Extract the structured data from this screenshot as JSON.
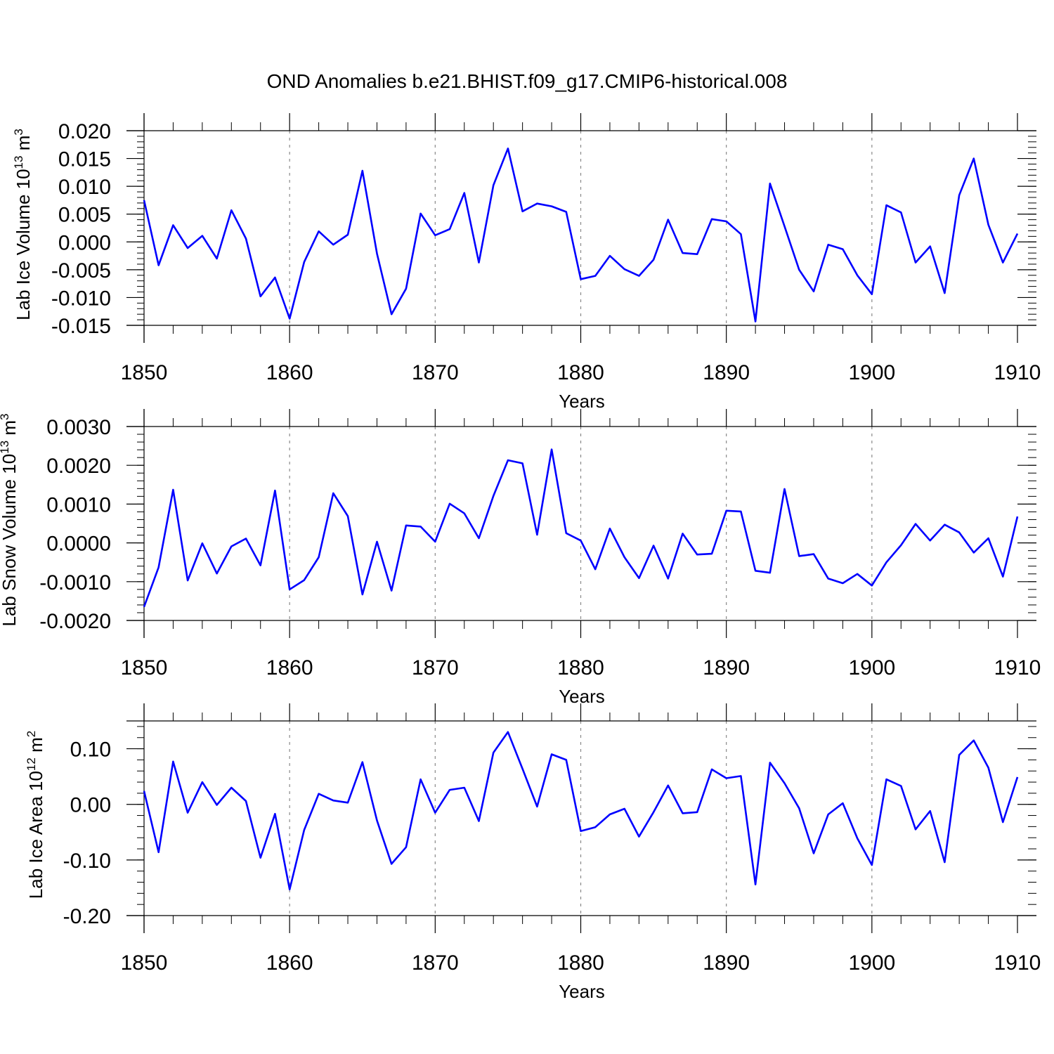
{
  "title": "OND Anomalies b.e21.BHIST.f09_g17.CMIP6-historical.008",
  "chart_data": [
    {
      "type": "line",
      "name": "ice-volume",
      "ylabel": "Lab Ice Volume",
      "ylabel_exp": "13",
      "ylabel_unit_sup": "3",
      "xlabel": "Years",
      "xlim": [
        1850,
        1910
      ],
      "ylim": [
        -0.015,
        0.02
      ],
      "frame_top": 0.02,
      "xticks": [
        1850,
        1860,
        1870,
        1880,
        1890,
        1900,
        1910
      ],
      "xtick_labels": [
        "1850",
        "1860",
        "1870",
        "1880",
        "1890",
        "1900",
        "1910"
      ],
      "yticks": [
        -0.015,
        -0.01,
        -0.005,
        0.0,
        0.005,
        0.01,
        0.015,
        0.02
      ],
      "ytick_labels": [
        "-0.015",
        "-0.010",
        "-0.005",
        "0.000",
        "0.005",
        "0.010",
        "0.015",
        "0.020"
      ],
      "yminor_step": 0.001,
      "x": [
        1850,
        1851,
        1852,
        1853,
        1854,
        1855,
        1856,
        1857,
        1858,
        1859,
        1860,
        1861,
        1862,
        1863,
        1864,
        1865,
        1866,
        1867,
        1868,
        1869,
        1870,
        1871,
        1872,
        1873,
        1874,
        1875,
        1876,
        1877,
        1878,
        1879,
        1880,
        1881,
        1882,
        1883,
        1884,
        1885,
        1886,
        1887,
        1888,
        1889,
        1890,
        1891,
        1892,
        1893,
        1894,
        1895,
        1896,
        1897,
        1898,
        1899,
        1900,
        1901,
        1902,
        1903,
        1904,
        1905,
        1906,
        1907,
        1908,
        1909,
        1910
      ],
      "values": [
        0.0075,
        -0.0042,
        0.003,
        -0.0011,
        0.0011,
        -0.003,
        0.0057,
        0.0006,
        -0.0098,
        -0.0064,
        -0.0138,
        -0.0036,
        0.0019,
        -0.0005,
        0.0013,
        0.0128,
        -0.0021,
        -0.013,
        -0.0084,
        0.0051,
        0.0012,
        0.0023,
        0.0088,
        -0.0037,
        0.0102,
        0.0168,
        0.0055,
        0.0069,
        0.0064,
        0.0054,
        -0.0067,
        -0.0061,
        -0.0025,
        -0.0049,
        -0.0061,
        -0.0032,
        0.004,
        -0.002,
        -0.0022,
        0.0041,
        0.0037,
        0.0014,
        -0.0143,
        0.0105,
        0.0028,
        -0.005,
        -0.0089,
        -0.0005,
        -0.0013,
        -0.006,
        -0.0094,
        0.0066,
        0.0053,
        -0.0037,
        -0.0008,
        -0.0092,
        0.0084,
        0.015,
        0.0031,
        -0.0037,
        0.0015
      ]
    },
    {
      "type": "line",
      "name": "snow-volume",
      "ylabel": "Lab Snow Volume",
      "ylabel_exp": "13",
      "ylabel_unit_sup": "3",
      "xlabel": "Years",
      "xlim": [
        1850,
        1910
      ],
      "ylim": [
        -0.002,
        0.003
      ],
      "frame_top": 0.003,
      "xticks": [
        1850,
        1860,
        1870,
        1880,
        1890,
        1900,
        1910
      ],
      "xtick_labels": [
        "1850",
        "1860",
        "1870",
        "1880",
        "1890",
        "1900",
        "1910"
      ],
      "yticks": [
        -0.002,
        -0.001,
        0.0,
        0.001,
        0.002,
        0.003
      ],
      "ytick_labels": [
        "-0.0020",
        "-0.0010",
        "0.0000",
        "0.0010",
        "0.0020",
        "0.0030"
      ],
      "yminor_step": 0.0002,
      "x": [
        1850,
        1851,
        1852,
        1853,
        1854,
        1855,
        1856,
        1857,
        1858,
        1859,
        1860,
        1861,
        1862,
        1863,
        1864,
        1865,
        1866,
        1867,
        1868,
        1869,
        1870,
        1871,
        1872,
        1873,
        1874,
        1875,
        1876,
        1877,
        1878,
        1879,
        1880,
        1881,
        1882,
        1883,
        1884,
        1885,
        1886,
        1887,
        1888,
        1889,
        1890,
        1891,
        1892,
        1893,
        1894,
        1895,
        1896,
        1897,
        1898,
        1899,
        1900,
        1901,
        1902,
        1903,
        1904,
        1905,
        1906,
        1907,
        1908,
        1909,
        1910
      ],
      "values": [
        -0.00165,
        -0.00063,
        0.00137,
        -0.00097,
        -1e-05,
        -0.00079,
        -9e-05,
        0.00011,
        -0.00058,
        0.00135,
        -0.0012,
        -0.00096,
        -0.00037,
        0.00128,
        0.00069,
        -0.00133,
        3e-05,
        -0.00123,
        0.00045,
        0.00042,
        3e-05,
        0.00101,
        0.00076,
        0.00012,
        0.00121,
        0.00213,
        0.00205,
        0.00021,
        0.00241,
        0.00025,
        6e-05,
        -0.00068,
        0.00037,
        -0.00037,
        -0.00091,
        -7e-05,
        -0.00092,
        0.00024,
        -0.0003,
        -0.00028,
        0.00083,
        0.00081,
        -0.00072,
        -0.00077,
        0.00139,
        -0.00034,
        -0.00029,
        -0.00092,
        -0.00104,
        -0.0008,
        -0.0011,
        -0.0005,
        -6e-05,
        0.00049,
        6e-05,
        0.00047,
        0.00027,
        -0.00025,
        0.00012,
        -0.00087,
        0.00068
      ]
    },
    {
      "type": "line",
      "name": "ice-area",
      "ylabel": "Lab Ice Area",
      "ylabel_exp": "12",
      "ylabel_unit_sup": "2",
      "xlabel": "Years",
      "xlim": [
        1850,
        1910
      ],
      "ylim": [
        -0.2,
        0.15
      ],
      "frame_top": 0.15,
      "xticks": [
        1850,
        1860,
        1870,
        1880,
        1890,
        1900,
        1910
      ],
      "xtick_labels": [
        "1850",
        "1860",
        "1870",
        "1880",
        "1890",
        "1900",
        "1910"
      ],
      "yticks": [
        -0.2,
        -0.1,
        0.0,
        0.1
      ],
      "ytick_labels": [
        "-0.20",
        "-0.10",
        "0.00",
        "0.10"
      ],
      "yminor_step": 0.02,
      "x": [
        1850,
        1851,
        1852,
        1853,
        1854,
        1855,
        1856,
        1857,
        1858,
        1859,
        1860,
        1861,
        1862,
        1863,
        1864,
        1865,
        1866,
        1867,
        1868,
        1869,
        1870,
        1871,
        1872,
        1873,
        1874,
        1875,
        1876,
        1877,
        1878,
        1879,
        1880,
        1881,
        1882,
        1883,
        1884,
        1885,
        1886,
        1887,
        1888,
        1889,
        1890,
        1891,
        1892,
        1893,
        1894,
        1895,
        1896,
        1897,
        1898,
        1899,
        1900,
        1901,
        1902,
        1903,
        1904,
        1905,
        1906,
        1907,
        1908,
        1909,
        1910
      ],
      "values": [
        0.024,
        -0.086,
        0.077,
        -0.015,
        0.04,
        -0.001,
        0.03,
        0.006,
        -0.096,
        -0.017,
        -0.153,
        -0.046,
        0.019,
        0.007,
        0.003,
        0.076,
        -0.029,
        -0.107,
        -0.077,
        0.045,
        -0.015,
        0.026,
        0.03,
        -0.03,
        0.093,
        0.13,
        0.064,
        -0.004,
        0.09,
        0.08,
        -0.048,
        -0.041,
        -0.018,
        -0.008,
        -0.058,
        -0.014,
        0.034,
        -0.016,
        -0.014,
        0.063,
        0.047,
        0.051,
        -0.144,
        0.075,
        0.038,
        -0.007,
        -0.088,
        -0.018,
        0.002,
        -0.061,
        -0.109,
        0.045,
        0.033,
        -0.045,
        -0.012,
        -0.104,
        0.089,
        0.115,
        0.066,
        -0.032,
        0.049
      ]
    }
  ]
}
